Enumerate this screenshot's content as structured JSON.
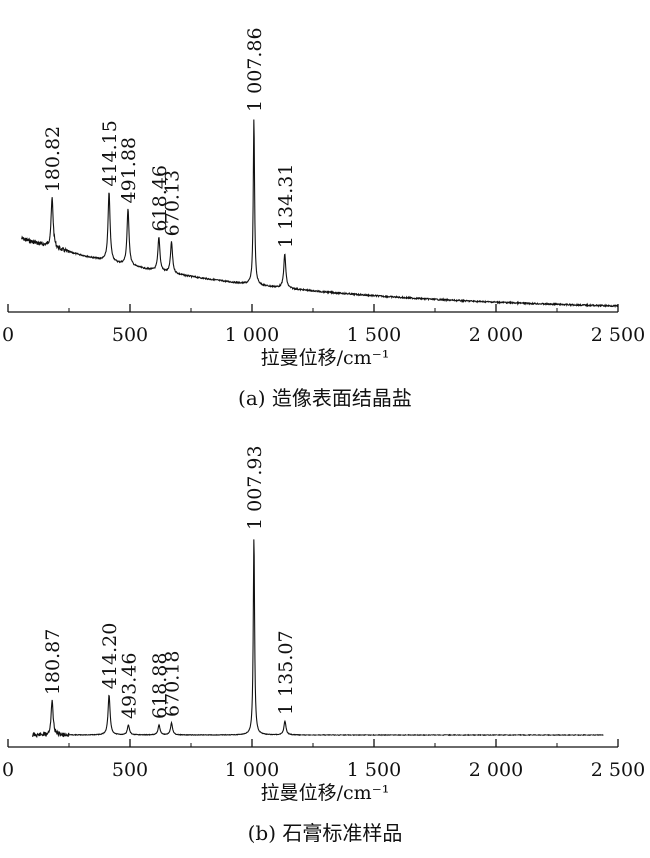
{
  "chart_data": [
    {
      "type": "line",
      "caption": "(a) 造像表面结晶盐",
      "xlabel": "拉曼位移/cm⁻¹",
      "xlim": [
        0,
        2500
      ],
      "xticks": [
        0,
        500,
        1000,
        1500,
        2000,
        2500
      ],
      "xtick_labels": [
        "0",
        "500",
        "1 000",
        "1 500",
        "2 000",
        "2 500"
      ],
      "peaks": [
        {
          "x": 180.82,
          "label": "180.82",
          "height": 0.38
        },
        {
          "x": 414.15,
          "label": "414.15",
          "height": 0.48
        },
        {
          "x": 491.88,
          "label": "491.88",
          "height": 0.38
        },
        {
          "x": 618.46,
          "label": "618.46",
          "height": 0.22
        },
        {
          "x": 670.13,
          "label": "670.13",
          "height": 0.2
        },
        {
          "x": 1007.86,
          "label": "1 007.86",
          "height": 1.0
        },
        {
          "x": 1134.31,
          "label": "1 134.31",
          "height": 0.2
        }
      ]
    },
    {
      "type": "line",
      "caption": "(b) 石膏标准样品",
      "xlabel": "拉曼位移/cm⁻¹",
      "xlim": [
        0,
        2500
      ],
      "xticks": [
        0,
        500,
        1000,
        1500,
        2000,
        2500
      ],
      "xtick_labels": [
        "0",
        "500",
        "1 000",
        "1 500",
        "2 000",
        "2 500"
      ],
      "peaks": [
        {
          "x": 180.87,
          "label": "180.87",
          "height": 0.17
        },
        {
          "x": 414.2,
          "label": "414.20",
          "height": 0.2
        },
        {
          "x": 493.46,
          "label": "493.46",
          "height": 0.05
        },
        {
          "x": 618.88,
          "label": "618.88",
          "height": 0.05
        },
        {
          "x": 670.18,
          "label": "670.18",
          "height": 0.06
        },
        {
          "x": 1007.93,
          "label": "1 007.93",
          "height": 1.0
        },
        {
          "x": 1135.07,
          "label": "1 135.07",
          "height": 0.07
        }
      ]
    }
  ]
}
